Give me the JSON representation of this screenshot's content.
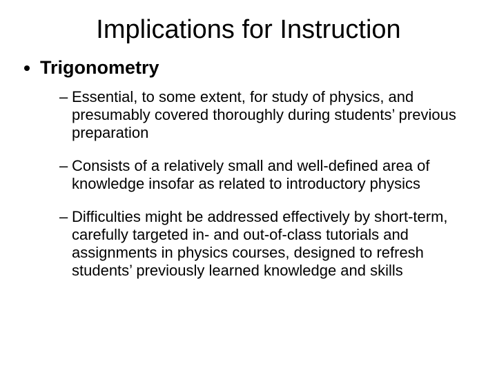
{
  "slide": {
    "title": "Implications for Instruction",
    "title_fontsize": 38,
    "background_color": "#ffffff",
    "text_color": "#000000",
    "font_family": "Arial",
    "bullets": [
      {
        "text": "Trigonometry",
        "fontsize": 27,
        "bold": true,
        "marker": "disc",
        "children": [
          {
            "text": "Essential, to some extent, for study of physics, and presumably covered thoroughly during students’ previous preparation",
            "fontsize": 22,
            "marker": "–"
          },
          {
            "text": "Consists of a relatively small and well-defined area of knowledge insofar as related to introductory physics",
            "fontsize": 22,
            "marker": "–"
          },
          {
            "text": "Difficulties might be addressed effectively by short-term, carefully targeted in- and out-of-class tutorials and assignments in physics courses, designed to refresh students’ previously learned knowledge and skills",
            "fontsize": 22,
            "marker": "–"
          }
        ]
      }
    ]
  }
}
